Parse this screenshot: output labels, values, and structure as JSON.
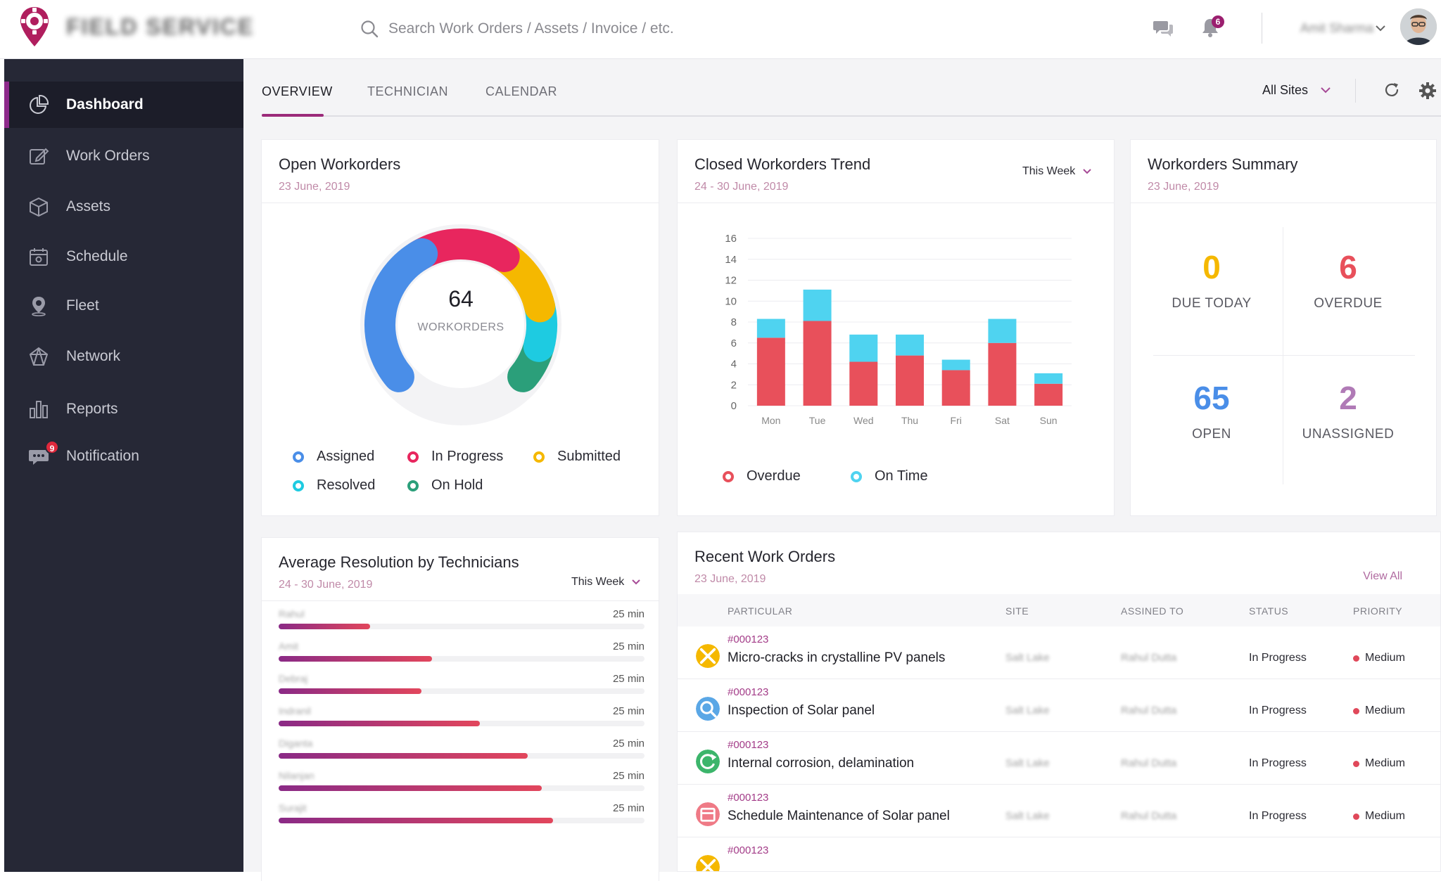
{
  "app": {
    "brand": "FIELD SERVICE",
    "user_name": "Amit Sharma"
  },
  "search": {
    "placeholder": "Search Work Orders / Assets / Invoice / etc."
  },
  "notifications": {
    "bell_count": "6",
    "sidebar_count": "9"
  },
  "sidebar": {
    "items": [
      {
        "label": "Dashboard",
        "icon": "pie-chart-icon",
        "active": true
      },
      {
        "label": "Work Orders",
        "icon": "edit-icon"
      },
      {
        "label": "Assets",
        "icon": "cube-icon"
      },
      {
        "label": "Schedule",
        "icon": "calendar-icon"
      },
      {
        "label": "Fleet",
        "icon": "location-pin-icon"
      },
      {
        "label": "Network",
        "icon": "network-icon"
      },
      {
        "label": "Reports",
        "icon": "bar-chart-icon"
      },
      {
        "label": "Notification",
        "icon": "chat-bubble-icon"
      }
    ]
  },
  "tabs": [
    {
      "label": "OVERVIEW",
      "active": true
    },
    {
      "label": "TECHNICIAN"
    },
    {
      "label": "CALENDAR"
    }
  ],
  "sites_filter": "All Sites",
  "open_workorders": {
    "title": "Open Workorders",
    "date": "23 June, 2019",
    "total": "64",
    "total_label": "WORKORDERS",
    "legend": [
      {
        "label": "Assigned",
        "color": "#4a8ee8"
      },
      {
        "label": "In Progress",
        "color": "#e8265e"
      },
      {
        "label": "Submitted",
        "color": "#f5b800"
      },
      {
        "label": "Resolved",
        "color": "#1ecbe1"
      },
      {
        "label": "On Hold",
        "color": "#2b9f7a"
      }
    ]
  },
  "closed_trend": {
    "title": "Closed Workorders Trend",
    "date": "24 - 30 June, 2019",
    "period": "This Week",
    "legend": [
      {
        "label": "Overdue",
        "color": "#e8505b"
      },
      {
        "label": "On Time",
        "color": "#4fd3f0"
      }
    ]
  },
  "summary": {
    "title": "Workorders Summary",
    "date": "23 June, 2019",
    "items": [
      {
        "value": "0",
        "label": "DUE TODAY",
        "color": "#f5b800"
      },
      {
        "value": "6",
        "label": "OVERDUE",
        "color": "#e8505b"
      },
      {
        "value": "65",
        "label": "OPEN",
        "color": "#4a8ee8"
      },
      {
        "value": "2",
        "label": "UNASSIGNED",
        "color": "#b07ab6"
      }
    ]
  },
  "technicians": {
    "title": "Average Resolution by Technicians",
    "date": "24 - 30 June, 2019",
    "period": "This Week",
    "rows": [
      {
        "name": "Rahul",
        "time": "25 min",
        "level": 0.25
      },
      {
        "name": "Amit",
        "time": "25 min",
        "level": 0.42
      },
      {
        "name": "Debraj",
        "time": "25 min",
        "level": 0.39
      },
      {
        "name": "Indranil",
        "time": "25 min",
        "level": 0.55
      },
      {
        "name": "Diganta",
        "time": "25 min",
        "level": 0.68
      },
      {
        "name": "Nilanjan",
        "time": "25 min",
        "level": 0.72
      },
      {
        "name": "Surajit",
        "time": "25 min",
        "level": 0.75
      }
    ]
  },
  "recent_orders": {
    "title": "Recent Work Orders",
    "date": "23 June, 2019",
    "view_all": "View All",
    "columns": [
      "PARTICULAR",
      "SITE",
      "ASSINED TO",
      "STATUS",
      "PRIORITY"
    ],
    "rows": [
      {
        "id": "#000123",
        "title": "Micro-cracks in crystalline PV panels",
        "site": "Salt Lake",
        "assigned": "Rahul Dutta",
        "status": "In Progress",
        "priority": "Medium",
        "icon": "tools-icon",
        "color": "#f5b800"
      },
      {
        "id": "#000123",
        "title": "Inspection of Solar panel",
        "site": "Salt Lake",
        "assigned": "Rahul Dutta",
        "status": "In Progress",
        "priority": "Medium",
        "icon": "magnifier-icon",
        "color": "#5aa7e6"
      },
      {
        "id": "#000123",
        "title": "Internal corrosion, delamination",
        "site": "Salt Lake",
        "assigned": "Rahul Dutta",
        "status": "In Progress",
        "priority": "Medium",
        "icon": "recycle-icon",
        "color": "#3cb56b"
      },
      {
        "id": "#000123",
        "title": "Schedule Maintenance of Solar panel",
        "site": "Salt Lake",
        "assigned": "Rahul Dutta",
        "status": "In Progress",
        "priority": "Medium",
        "icon": "calendar-icon",
        "color": "#ef7a86"
      },
      {
        "id": "#000123",
        "title": "",
        "site": "",
        "assigned": "",
        "status": "",
        "priority": "",
        "icon": "tools-icon",
        "color": "#f5b800"
      }
    ]
  },
  "chart_data": [
    {
      "type": "pie",
      "title": "Open Workorders",
      "categories": [
        "Assigned",
        "In Progress",
        "Submitted",
        "Resolved",
        "On Hold"
      ],
      "values": [
        24,
        15,
        11,
        7,
        7
      ],
      "total": 64
    },
    {
      "type": "bar",
      "title": "Closed Workorders Trend",
      "categories": [
        "Mon",
        "Tue",
        "Wed",
        "Thu",
        "Fri",
        "Sat",
        "Sun"
      ],
      "series": [
        {
          "name": "Overdue",
          "values": [
            6.5,
            8.1,
            4.2,
            4.8,
            3.4,
            6.0,
            2.1
          ],
          "color": "#e8505b"
        },
        {
          "name": "On Time",
          "values": [
            1.8,
            3.0,
            2.6,
            2.0,
            1.0,
            2.3,
            1.0
          ],
          "color": "#4fd3f0"
        }
      ],
      "stacked": true,
      "ylim": [
        0,
        16
      ],
      "yticks": [
        0,
        2,
        4,
        6,
        8,
        10,
        12,
        14,
        16
      ],
      "grid": true,
      "legend": "bottom"
    }
  ]
}
